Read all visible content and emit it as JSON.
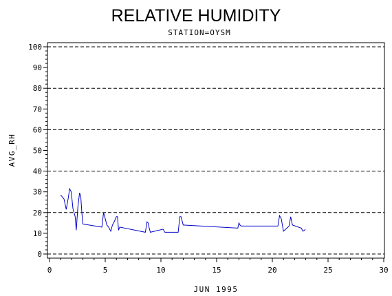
{
  "chart_data": {
    "type": "line",
    "title": "RELATIVE HUMIDITY",
    "subtitle": "STATION=OYSM",
    "xlabel": "JUN 1995",
    "ylabel": "AVG_RH",
    "xlim": [
      0,
      30
    ],
    "ylim": [
      0,
      100
    ],
    "x_ticks": [
      0,
      5,
      10,
      15,
      20,
      25,
      30
    ],
    "y_ticks": [
      0,
      10,
      20,
      30,
      40,
      50,
      60,
      70,
      80,
      90,
      100
    ],
    "gridlines_y": [
      0,
      20,
      40,
      60,
      80,
      100
    ],
    "grid": "dashed horizontal",
    "line_color": "#0000c8",
    "series": [
      {
        "x": [
          1.0,
          1.3,
          1.5,
          1.7,
          1.8,
          1.95,
          2.1,
          2.3,
          2.4,
          2.55,
          2.7,
          2.8,
          2.9,
          3.0,
          4.7,
          4.85,
          5.0,
          5.15,
          5.3,
          5.5,
          5.65,
          5.8,
          6.0,
          6.1,
          6.2,
          6.3,
          8.6,
          8.75,
          8.85,
          8.95,
          9.05,
          10.2,
          10.35,
          11.4,
          11.55,
          11.7,
          11.8,
          12.0,
          16.9,
          17.0,
          17.1,
          17.2,
          20.5,
          20.65,
          20.8,
          21.0,
          21.5,
          21.65,
          21.8,
          22.6,
          22.75,
          22.9,
          22.95
        ],
        "y": [
          28.5,
          26.5,
          21.5,
          27.5,
          31.5,
          30,
          22,
          18,
          11.5,
          23,
          29.5,
          28,
          20,
          14.5,
          13,
          20,
          17,
          14,
          13,
          11,
          14,
          15.5,
          18,
          18,
          11.5,
          13,
          10.5,
          15.5,
          15,
          12.5,
          10.5,
          12,
          10.5,
          10.5,
          10.5,
          18,
          18,
          14,
          12.5,
          15,
          14,
          13.5,
          13.5,
          18.5,
          17,
          11,
          13.5,
          18,
          14,
          12.5,
          11,
          11.5,
          12
        ]
      }
    ]
  }
}
